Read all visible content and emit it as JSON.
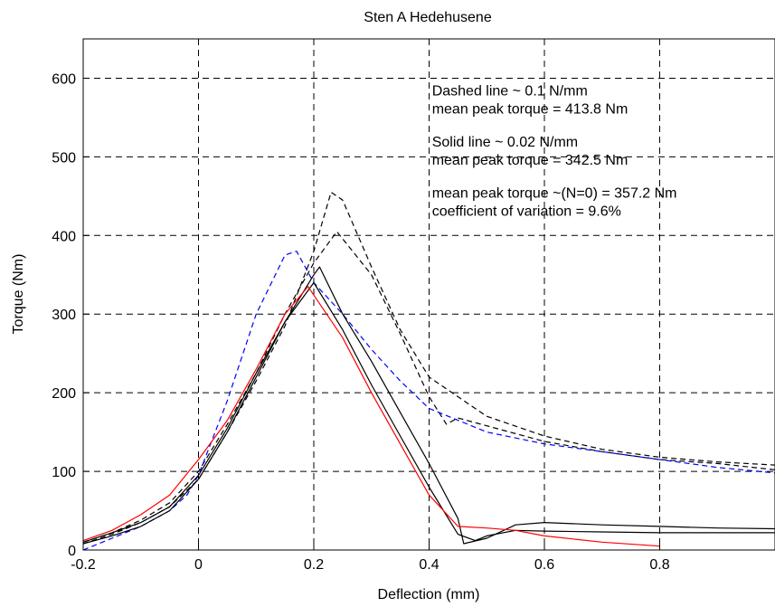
{
  "chart_data": {
    "type": "line",
    "title": "Sten A Hedehusene",
    "xlabel": "Deflection (mm)",
    "ylabel": "Torque (Nm)",
    "xlim": [
      -0.2,
      1.0
    ],
    "ylim": [
      0,
      650
    ],
    "xticks": [
      -0.2,
      0,
      0.2,
      0.4,
      0.6,
      0.8
    ],
    "xtick_labels": [
      "-0.2",
      "0",
      "0.2",
      "0.4",
      "0.6",
      "0.8"
    ],
    "yticks": [
      0,
      100,
      200,
      300,
      400,
      500,
      600
    ],
    "ytick_labels": [
      "0",
      "100",
      "200",
      "300",
      "400",
      "500",
      "600"
    ],
    "grid": true,
    "annotations": [
      {
        "text": "Dashed line ~ 0.1 N/mm",
        "x": 0.405,
        "y": 578
      },
      {
        "text": "mean peak torque = 413.8 Nm",
        "x": 0.405,
        "y": 555
      },
      {
        "text": "Solid line   ~ 0.02 N/mm",
        "x": 0.405,
        "y": 513
      },
      {
        "text": "mean peak torque = 342.5 Nm",
        "x": 0.405,
        "y": 490
      },
      {
        "text": "mean peak torque ~(N=0) = 357.2 Nm",
        "x": 0.405,
        "y": 448
      },
      {
        "text": "coefficient of variation = 9.6%",
        "x": 0.405,
        "y": 425
      }
    ],
    "series": [
      {
        "color": "#000000",
        "style": "dashed",
        "x": [
          -0.2,
          -0.15,
          -0.1,
          -0.05,
          0,
          0.05,
          0.1,
          0.15,
          0.2,
          0.23,
          0.25,
          0.3,
          0.35,
          0.4,
          0.45,
          0.5,
          0.6,
          0.7,
          0.8,
          0.9,
          1.0
        ],
        "y": [
          8,
          20,
          35,
          55,
          90,
          150,
          215,
          285,
          380,
          455,
          445,
          360,
          280,
          220,
          195,
          170,
          145,
          128,
          118,
          112,
          108
        ]
      },
      {
        "color": "#000000",
        "style": "dashed",
        "x": [
          -0.2,
          -0.15,
          -0.1,
          -0.05,
          0,
          0.05,
          0.1,
          0.15,
          0.2,
          0.24,
          0.3,
          0.35,
          0.4,
          0.43,
          0.45,
          0.5,
          0.6,
          0.7,
          0.8,
          0.9,
          1.0
        ],
        "y": [
          10,
          22,
          38,
          60,
          100,
          160,
          225,
          300,
          365,
          405,
          350,
          275,
          195,
          160,
          168,
          158,
          138,
          125,
          115,
          110,
          102
        ]
      },
      {
        "color": "#0000ff",
        "style": "dashed",
        "x": [
          -0.2,
          -0.15,
          -0.1,
          -0.05,
          -0.02,
          0,
          0.05,
          0.1,
          0.15,
          0.17,
          0.2,
          0.25,
          0.3,
          0.35,
          0.4,
          0.5,
          0.6,
          0.7,
          0.8,
          0.9,
          1.0
        ],
        "y": [
          0,
          15,
          30,
          50,
          70,
          95,
          190,
          300,
          375,
          380,
          340,
          300,
          255,
          215,
          180,
          150,
          135,
          125,
          115,
          105,
          98
        ]
      },
      {
        "color": "#000000",
        "style": "solid",
        "x": [
          -0.2,
          -0.15,
          -0.1,
          -0.05,
          0,
          0.05,
          0.1,
          0.15,
          0.2,
          0.21,
          0.25,
          0.3,
          0.35,
          0.4,
          0.45,
          0.46,
          0.5,
          0.55,
          0.6,
          0.7,
          0.8,
          0.9,
          1.0
        ],
        "y": [
          8,
          18,
          30,
          50,
          90,
          150,
          220,
          290,
          350,
          360,
          300,
          240,
          175,
          110,
          40,
          8,
          15,
          32,
          35,
          32,
          30,
          28,
          27
        ]
      },
      {
        "color": "#000000",
        "style": "solid",
        "x": [
          -0.2,
          -0.15,
          -0.1,
          -0.05,
          0,
          0.05,
          0.1,
          0.15,
          0.2,
          0.25,
          0.3,
          0.35,
          0.4,
          0.45,
          0.48,
          0.5,
          0.55,
          0.6,
          0.7,
          0.8,
          0.9,
          1.0
        ],
        "y": [
          10,
          22,
          35,
          55,
          95,
          155,
          225,
          290,
          340,
          280,
          210,
          145,
          80,
          20,
          12,
          18,
          25,
          24,
          23,
          22,
          22,
          22
        ]
      },
      {
        "color": "#ff0000",
        "style": "solid",
        "x": [
          -0.2,
          -0.15,
          -0.1,
          -0.05,
          0,
          0.05,
          0.1,
          0.15,
          0.19,
          0.25,
          0.3,
          0.35,
          0.4,
          0.45,
          0.5,
          0.55,
          0.6,
          0.7,
          0.8
        ],
        "y": [
          12,
          25,
          45,
          70,
          115,
          165,
          230,
          300,
          335,
          270,
          200,
          135,
          70,
          30,
          28,
          25,
          18,
          10,
          5
        ]
      }
    ]
  }
}
